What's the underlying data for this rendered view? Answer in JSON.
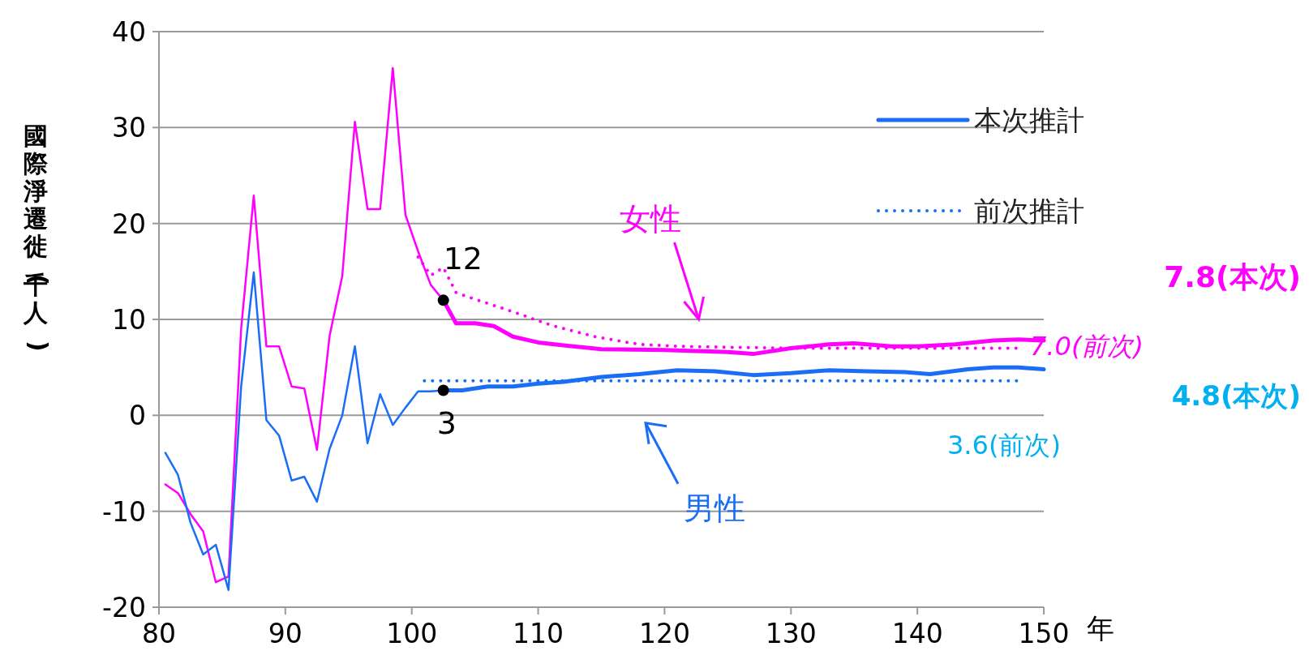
{
  "chart_data": {
    "type": "line",
    "ylabel": "國際淨遷徙(千人)",
    "xlabel": "年",
    "xlim": [
      80,
      150
    ],
    "xticks": [
      80,
      90,
      100,
      110,
      120,
      130,
      140,
      150
    ],
    "ylim": [
      -20,
      40
    ],
    "yticks": [
      -20,
      -10,
      0,
      10,
      20,
      30,
      40
    ],
    "grid": "y",
    "legend": "top right",
    "series": [
      {
        "color": "#ff00ff",
        "line_style": "solid",
        "x": [
          80.5,
          81.5,
          82.5,
          83.5,
          84.5,
          85.5,
          86.5,
          87.5,
          88.5,
          89.5,
          90.5,
          91.5,
          92.5,
          93.5,
          94.5,
          95.5,
          96.5,
          97.5,
          98.5,
          99.5,
          100.5,
          101.5,
          102.5
        ],
        "values": [
          -7.2,
          -8.1,
          -10.3,
          -12.1,
          -17.4,
          -16.8,
          9,
          22.9,
          7.2,
          7.2,
          3.0,
          2.8,
          -3.6,
          8.3,
          14.5,
          30.6,
          21.5,
          21.5,
          36.2,
          20.9,
          17.1,
          13.6,
          12
        ]
      },
      {
        "color": "#ff00ff",
        "line_style": "solid",
        "x": [
          102.5,
          103.5,
          105,
          106.5,
          108,
          110,
          112,
          115,
          120,
          125,
          127,
          130,
          133,
          135,
          138,
          140,
          143,
          146,
          148,
          150
        ],
        "values": [
          12,
          9.6,
          9.6,
          9.3,
          8.2,
          7.6,
          7.3,
          6.9,
          6.8,
          6.6,
          6.4,
          7.0,
          7.4,
          7.5,
          7.2,
          7.2,
          7.4,
          7.8,
          7.9,
          7.8
        ]
      },
      {
        "color": "#ff00ff",
        "line_style": "dotted",
        "x": [
          100.5,
          101.5,
          102.5,
          103.5,
          105,
          108,
          111,
          114.5,
          118,
          121,
          125,
          130,
          140,
          148
        ],
        "values": [
          16.5,
          14.6,
          15.4,
          12.8,
          12.1,
          10.8,
          9.4,
          8.2,
          7.4,
          7.2,
          7.1,
          7.0,
          7.0,
          7.0
        ]
      },
      {
        "color": "#1a6ef5",
        "line_style": "solid",
        "x": [
          80.5,
          81.5,
          82.5,
          83.5,
          84.5,
          85.5,
          86.5,
          87.5,
          88.5,
          89.5,
          90.5,
          91.5,
          92.5,
          93.5,
          94.5,
          95.5,
          96.5,
          97.5,
          98.5,
          99.5,
          100.5,
          101.5,
          102.5
        ],
        "values": [
          -3.9,
          -6.2,
          -11.2,
          -14.5,
          -13.5,
          -18.2,
          3,
          14.9,
          -0.5,
          -2.1,
          -6.8,
          -6.4,
          -9.0,
          -3.5,
          0,
          7.2,
          -2.9,
          2.2,
          -1.0,
          0.8,
          2.5,
          2.5,
          2.6
        ]
      },
      {
        "name": "本次推計",
        "color": "#1a6ef5",
        "line_style": "solid",
        "x": [
          102.5,
          104,
          106,
          108,
          110,
          112,
          115,
          118,
          121,
          124,
          127,
          130,
          133,
          136,
          139,
          141,
          144,
          146,
          148,
          150
        ],
        "values": [
          2.6,
          2.6,
          3.0,
          3.0,
          3.3,
          3.5,
          4.0,
          4.3,
          4.7,
          4.6,
          4.2,
          4.4,
          4.7,
          4.6,
          4.5,
          4.3,
          4.8,
          5.0,
          5.0,
          4.8
        ]
      },
      {
        "name": "前次推計",
        "color": "#1a6ef5",
        "line_style": "dotted",
        "x": [
          101,
          148
        ],
        "values": [
          3.6,
          3.6
        ]
      }
    ],
    "annotations": [
      {
        "text": "12",
        "x": 102.5,
        "y": 12
      },
      {
        "text": "3",
        "x": 102.5,
        "y": 2.6
      },
      "女性",
      "男性",
      "7.8(本次)",
      "7.0(前次)",
      "4.8(本次)",
      "3.6(前次)"
    ]
  }
}
